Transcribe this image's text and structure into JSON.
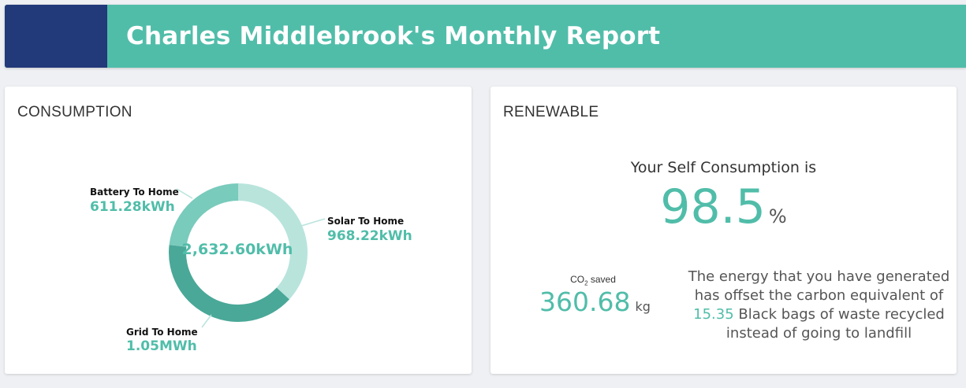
{
  "header": {
    "title": "Charles Middlebrook's Monthly Report",
    "colors": {
      "banner": "#50bda9",
      "accent_block": "#22397a"
    }
  },
  "consumption": {
    "title": "CONSUMPTION",
    "total": "2,632.60kWh",
    "segments": [
      {
        "label": "Solar To Home",
        "value": "968.22kWh",
        "color": "#b8e4dc"
      },
      {
        "label": "Grid To Home",
        "value": "1.05MWh",
        "color": "#4aa898"
      },
      {
        "label": "Battery To Home",
        "value": "611.28kWh",
        "color": "#79cbbc"
      }
    ],
    "chart_data": {
      "type": "pie",
      "categories": [
        "Solar To Home",
        "Grid To Home",
        "Battery To Home"
      ],
      "values": [
        968.22,
        1053.1,
        611.28
      ],
      "title": "",
      "center_label": "2,632.60kWh"
    }
  },
  "renewable": {
    "title": "RENEWABLE",
    "self_consumption_label": "Your Self Consumption is",
    "self_consumption_value": "98.5",
    "self_consumption_unit": "%",
    "co2_label_prefix": "CO",
    "co2_label_subscript": "2",
    "co2_label_suffix": " saved",
    "co2_value": "360.68",
    "co2_unit": "kg",
    "offset_text_before": "The energy that you have generated has offset the carbon equivalent of ",
    "offset_number": "15.35",
    "offset_text_after": " Black bags of waste recycled instead of going to landfill"
  }
}
